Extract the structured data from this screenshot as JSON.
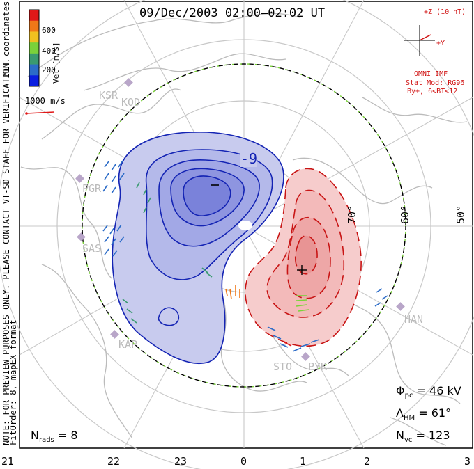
{
  "title": "09/Dec/2003 02:00–02:02 UT",
  "colorbar": {
    "label": "Vel [m/s]",
    "ticks": [
      "600",
      "400",
      "200"
    ],
    "colors": [
      "#0a1ee0",
      "#2c6cc8",
      "#3a9a70",
      "#7ad23a",
      "#f0c020",
      "#f07818",
      "#e01818"
    ]
  },
  "coord_label": "MLT coordinates",
  "scale_label": "1000 m/s",
  "side_note": "NOTE: FOR PREVIEW PURPOSES ONLY. PLEASE CONTACT VT-SD STAFF FOR VERIFICATION.",
  "fit_order": "FitOrder: 8,  mapEX format",
  "imf": {
    "z_label": "+Z (10 nT)",
    "y_label": "+Y",
    "title": "OMNI IMF",
    "model": "Stat Mod: RG96",
    "bins": "By+, 6<BT<12"
  },
  "latitude_labels": [
    "70°",
    "60°",
    "50°"
  ],
  "stations": [
    "KSR",
    "KOD",
    "PGR",
    "SAS",
    "KAP",
    "STO",
    "PYK",
    "HAN"
  ],
  "mlt_ticks": [
    "21",
    "22",
    "23",
    "0",
    "1",
    "2",
    "3"
  ],
  "contour_labels": [
    "-9"
  ],
  "stats": {
    "phi_symbol": "Φ",
    "phi_sub": "pc",
    "phi_value": "= 46 kV",
    "lambda_symbol": "Λ",
    "lambda_sub": "HM",
    "lambda_value": "= 61°",
    "nvc_symbol": "N",
    "nvc_sub": "vc",
    "nvc_value": "= 123",
    "nrads_symbol": "N",
    "nrads_sub": "rads",
    "nrads_value": "= 8"
  },
  "colors": {
    "negative_fill": "#c8cbee",
    "negative_line": "#1424b4",
    "positive_fill": "#f6cccc",
    "positive_line": "#c81414",
    "boundary": "#7ad23a",
    "land": "#bbbbbb",
    "grid": "#c8c8c8"
  }
}
